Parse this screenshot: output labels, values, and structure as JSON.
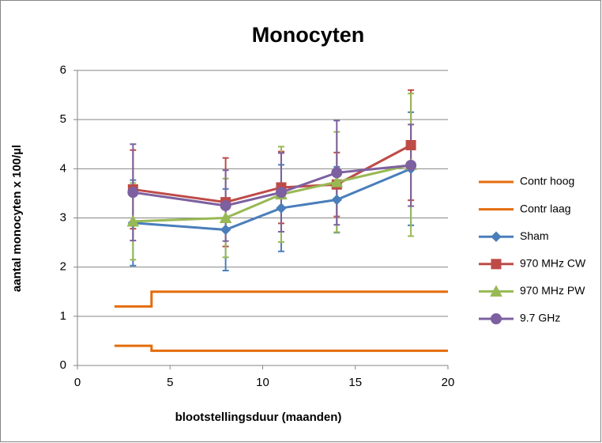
{
  "chart_data": {
    "type": "line",
    "title": "Monocyten",
    "x_label": "blootstellingsduur (maanden)",
    "y_label": "aantal monocyten x 100/µl",
    "xlim": [
      0,
      20
    ],
    "xticks": [
      0,
      5,
      10,
      15,
      20
    ],
    "ylim": [
      0,
      6
    ],
    "yticks": [
      0,
      1,
      2,
      3,
      4,
      5,
      6
    ],
    "grid": true,
    "legend": "right",
    "series": [
      {
        "name": "Contr hoog",
        "color": "#E46C0A",
        "marker": "none",
        "x": [
          2,
          4,
          4,
          20
        ],
        "values": [
          1.2,
          1.2,
          1.5,
          1.5
        ]
      },
      {
        "name": "Contr laag",
        "color": "#E46C0A",
        "marker": "none",
        "x": [
          2,
          4,
          4,
          20
        ],
        "values": [
          0.4,
          0.4,
          0.3,
          0.3
        ]
      },
      {
        "name": "Sham",
        "color": "#4A7EBB",
        "marker": "diamond",
        "x": [
          3,
          8,
          11,
          14,
          18
        ],
        "values": [
          2.9,
          2.76,
          3.2,
          3.37,
          4.0
        ],
        "errors": [
          0.87,
          0.83,
          0.88,
          0.67,
          1.15
        ]
      },
      {
        "name": "970 MHz CW",
        "color": "#BE4B48",
        "marker": "square",
        "x": [
          3,
          8,
          11,
          14,
          18
        ],
        "values": [
          3.58,
          3.32,
          3.62,
          3.68,
          4.48
        ],
        "errors": [
          0.8,
          0.9,
          0.73,
          0.65,
          1.12
        ]
      },
      {
        "name": "970 MHz PW",
        "color": "#98B954",
        "marker": "triangle",
        "x": [
          3,
          8,
          11,
          14,
          18
        ],
        "values": [
          2.93,
          3.0,
          3.48,
          3.73,
          4.08
        ],
        "errors": [
          0.78,
          0.8,
          0.97,
          1.02,
          1.45
        ]
      },
      {
        "name": "9.7 GHz",
        "color": "#7D60A0",
        "marker": "circle",
        "x": [
          3,
          8,
          11,
          14,
          18
        ],
        "values": [
          3.52,
          3.25,
          3.52,
          3.92,
          4.07
        ],
        "errors": [
          0.98,
          0.72,
          0.8,
          1.06,
          0.83
        ]
      }
    ]
  }
}
